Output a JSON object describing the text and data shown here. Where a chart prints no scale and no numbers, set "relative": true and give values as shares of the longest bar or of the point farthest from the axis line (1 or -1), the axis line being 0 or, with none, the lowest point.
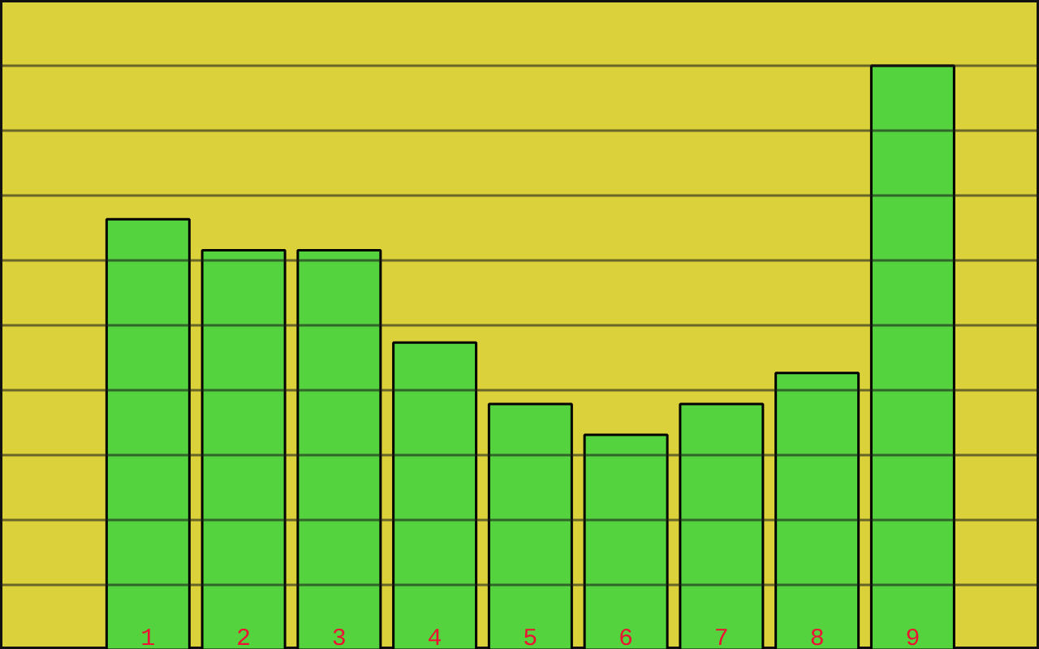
{
  "chart_data": {
    "type": "bar",
    "categories": [
      "1",
      "2",
      "3",
      "4",
      "5",
      "6",
      "7",
      "8",
      "9"
    ],
    "values": [
      0.737,
      0.684,
      0.684,
      0.526,
      0.421,
      0.368,
      0.421,
      0.474,
      1
    ],
    "color": "#54d33e",
    "relative": true,
    "grid": "y"
  }
}
